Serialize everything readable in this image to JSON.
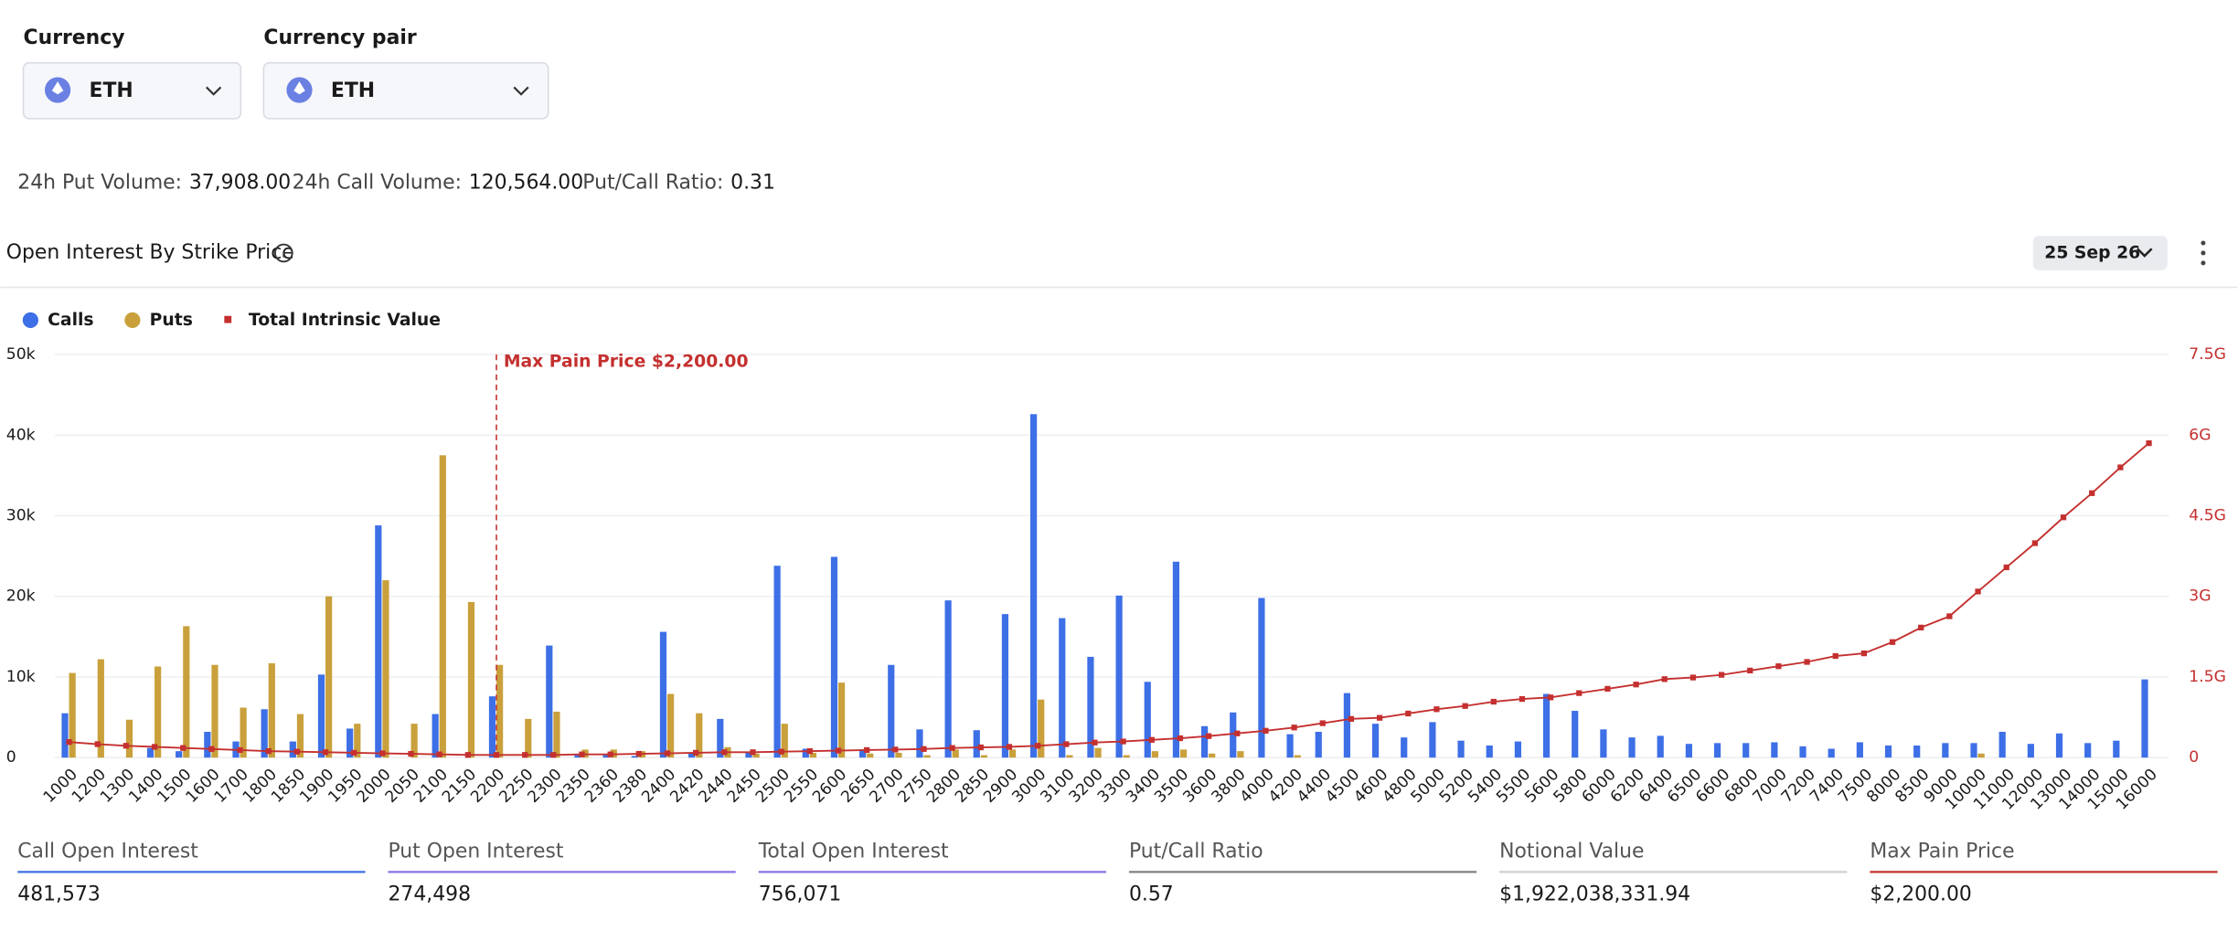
{
  "controls": {
    "currency_label": "Currency",
    "currency_value": "ETH",
    "pair_label": "Currency pair",
    "pair_value": "ETH",
    "expiry": "25 Sep 26"
  },
  "stats": [
    {
      "label": "24h Put Volume:",
      "value": "37,908.00"
    },
    {
      "label": "24h Call Volume:",
      "value": "120,564.00"
    },
    {
      "label": "Put/Call Ratio:",
      "value": "0.31"
    }
  ],
  "summary": [
    {
      "label": "Call Open Interest",
      "value": "481,573",
      "color": "#3d6fe6"
    },
    {
      "label": "Put Open Interest",
      "value": "274,498",
      "color": "#8b72e6"
    },
    {
      "label": "Total Open Interest",
      "value": "756,071",
      "color": "#8b72e6"
    },
    {
      "label": "Put/Call Ratio",
      "value": "0.57",
      "color": "#808080"
    },
    {
      "label": "Notional Value",
      "value": "$1,922,038,331.94",
      "color": "#cfcfcf"
    },
    {
      "label": "Max Pain Price",
      "value": "$2,200.00",
      "color": "#c4302f"
    }
  ],
  "chart_data": {
    "type": "bar",
    "title": "Open Interest By Strike Price",
    "categories": [
      "1000",
      "1200",
      "1300",
      "1400",
      "1500",
      "1600",
      "1700",
      "1800",
      "1850",
      "1900",
      "1950",
      "2000",
      "2050",
      "2100",
      "2150",
      "2200",
      "2250",
      "2300",
      "2350",
      "2360",
      "2380",
      "2400",
      "2420",
      "2440",
      "2450",
      "2500",
      "2550",
      "2600",
      "2650",
      "2700",
      "2750",
      "2800",
      "2850",
      "2900",
      "3000",
      "3100",
      "3200",
      "3300",
      "3400",
      "3500",
      "3600",
      "3800",
      "4000",
      "4200",
      "4400",
      "4500",
      "4600",
      "4800",
      "5000",
      "5200",
      "5400",
      "5500",
      "5600",
      "5800",
      "6000",
      "6200",
      "6400",
      "6500",
      "6600",
      "6800",
      "7000",
      "7200",
      "7400",
      "7500",
      "8000",
      "8500",
      "9000",
      "10000",
      "11000",
      "12000",
      "13000",
      "14000",
      "15000",
      "16000"
    ],
    "series": [
      {
        "name": "Calls",
        "color": "#3d6fe6",
        "values": [
          5500,
          0,
          0,
          1200,
          800,
          3200,
          2000,
          6000,
          2000,
          10300,
          3600,
          28800,
          0,
          5400,
          0,
          7600,
          0,
          13900,
          300,
          300,
          200,
          15600,
          500,
          4800,
          700,
          23800,
          1100,
          24900,
          1000,
          11500,
          3500,
          19500,
          3400,
          17800,
          42600,
          17300,
          12500,
          20100,
          9400,
          24300,
          3900,
          5600,
          19800,
          2900,
          3200,
          8000,
          4200,
          2500,
          4400,
          2100,
          1500,
          2000,
          7900,
          5800,
          3500,
          2500,
          2700,
          1700,
          1800,
          1800,
          1900,
          1400,
          1100,
          1900,
          1500,
          1500,
          1800,
          1800,
          3200,
          1700,
          3000,
          1800,
          2100,
          9700
        ]
      },
      {
        "name": "Puts",
        "color": "#c9a03b",
        "values": [
          10500,
          12200,
          4700,
          11300,
          16300,
          11500,
          6200,
          11700,
          5400,
          20000,
          4200,
          22000,
          4200,
          37500,
          19300,
          11500,
          4800,
          5700,
          1000,
          1000,
          800,
          7900,
          5500,
          1300,
          500,
          4200,
          600,
          9300,
          500,
          600,
          300,
          1000,
          300,
          1000,
          7200,
          300,
          1200,
          300,
          800,
          1000,
          500,
          800,
          0,
          300,
          0,
          0,
          0,
          0,
          0,
          0,
          0,
          0,
          0,
          0,
          0,
          0,
          0,
          0,
          0,
          0,
          0,
          0,
          0,
          0,
          0,
          0,
          0,
          500,
          0,
          0,
          0,
          0,
          0,
          0
        ]
      },
      {
        "name": "Total Intrinsic Value",
        "color": "#c4302f",
        "type": "line",
        "axis": "y2",
        "values": [
          290000000,
          250000000,
          220000000,
          200000000,
          180000000,
          160000000,
          140000000,
          120000000,
          110000000,
          100000000,
          90000000,
          80000000,
          70000000,
          60000000,
          50000000,
          50000000,
          50000000,
          50000000,
          60000000,
          60000000,
          70000000,
          80000000,
          90000000,
          100000000,
          100000000,
          110000000,
          120000000,
          130000000,
          140000000,
          150000000,
          160000000,
          180000000,
          190000000,
          200000000,
          220000000,
          250000000,
          280000000,
          300000000,
          330000000,
          360000000,
          400000000,
          450000000,
          500000000,
          560000000,
          640000000,
          720000000,
          740000000,
          820000000,
          900000000,
          960000000,
          1040000000,
          1090000000,
          1120000000,
          1200000000,
          1280000000,
          1360000000,
          1460000000,
          1490000000,
          1540000000,
          1620000000,
          1700000000,
          1780000000,
          1890000000,
          1940000000,
          2150000000,
          2420000000,
          2630000000,
          3090000000,
          3540000000,
          3990000000,
          4470000000,
          4920000000,
          5400000000,
          5850000000
        ]
      }
    ],
    "ylim": [
      0,
      50000
    ],
    "yticks": [
      0,
      {
        "value": 10000,
        "label": "10k"
      },
      {
        "value": 20000,
        "label": "20k"
      },
      {
        "value": 30000,
        "label": "30k"
      },
      {
        "value": 40000,
        "label": "40k"
      },
      {
        "value": 50000,
        "label": "50k"
      }
    ],
    "y2lim": [
      0,
      7500000000
    ],
    "y2ticks": [
      0,
      {
        "value": 1500000000,
        "label": "1.5G"
      },
      {
        "value": 3000000000,
        "label": "3G"
      },
      {
        "value": 4500000000,
        "label": "4.5G"
      },
      {
        "value": 6000000000,
        "label": "6G"
      },
      {
        "value": 7500000000,
        "label": "7.5G"
      }
    ],
    "grid": true,
    "legend": "top-left",
    "annotation": {
      "label": "Max Pain Price $2,200.00",
      "x": "2200",
      "color": "#c4302f"
    }
  }
}
